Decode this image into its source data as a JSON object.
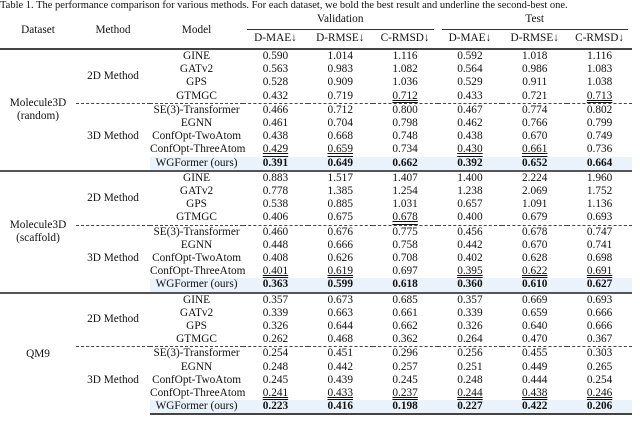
{
  "caption": "Table 1. The performance comparison for various methods. For each dataset, we bold the best result and underline the second-best one.",
  "header": {
    "dataset": "Dataset",
    "method": "Method",
    "model": "Model",
    "validation": "Validation",
    "test": "Test",
    "metrics": [
      "D-MAE↓",
      "D-RMSE↓",
      "C-RMSD↓",
      "D-MAE↓",
      "D-RMSE↓",
      "C-RMSD↓"
    ]
  },
  "datasets": [
    {
      "name_lines": [
        "Molecule3D",
        "(random)"
      ],
      "groups": [
        {
          "method": "2D Method",
          "rows": [
            {
              "model": "GINE",
              "values": [
                "0.590",
                "1.014",
                "1.116",
                "0.592",
                "1.018",
                "1.116"
              ],
              "underline": []
            },
            {
              "model": "GATv2",
              "values": [
                "0.563",
                "0.983",
                "1.082",
                "0.564",
                "0.986",
                "1.083"
              ],
              "underline": []
            },
            {
              "model": "GPS",
              "values": [
                "0.528",
                "0.909",
                "1.036",
                "0.529",
                "0.911",
                "1.038"
              ],
              "underline": []
            },
            {
              "model": "GTMGC",
              "values": [
                "0.432",
                "0.719",
                "0.712",
                "0.433",
                "0.721",
                "0.713"
              ],
              "underline": [
                2,
                5
              ]
            }
          ]
        },
        {
          "method": "3D Method",
          "rows": [
            {
              "model": "SE(3)-Transformer",
              "values": [
                "0.466",
                "0.712",
                "0.800",
                "0.467",
                "0.774",
                "0.802"
              ],
              "underline": []
            },
            {
              "model": "EGNN",
              "values": [
                "0.461",
                "0.704",
                "0.798",
                "0.462",
                "0.766",
                "0.799"
              ],
              "underline": []
            },
            {
              "model": "ConfOpt-TwoAtom",
              "values": [
                "0.438",
                "0.668",
                "0.748",
                "0.438",
                "0.670",
                "0.749"
              ],
              "underline": []
            },
            {
              "model": "ConfOpt-ThreeAtom",
              "values": [
                "0.429",
                "0.659",
                "0.734",
                "0.430",
                "0.661",
                "0.736"
              ],
              "underline": [
                0,
                1,
                3,
                4
              ]
            },
            {
              "model": "WGFormer (ours)",
              "values": [
                "0.391",
                "0.649",
                "0.662",
                "0.392",
                "0.652",
                "0.664"
              ],
              "underline": [],
              "best": true
            }
          ]
        }
      ]
    },
    {
      "name_lines": [
        "Molecule3D",
        "(scaffold)"
      ],
      "groups": [
        {
          "method": "2D Method",
          "rows": [
            {
              "model": "GINE",
              "values": [
                "0.883",
                "1.517",
                "1.407",
                "1.400",
                "2.224",
                "1.960"
              ],
              "underline": []
            },
            {
              "model": "GATv2",
              "values": [
                "0.778",
                "1.385",
                "1.254",
                "1.238",
                "2.069",
                "1.752"
              ],
              "underline": []
            },
            {
              "model": "GPS",
              "values": [
                "0.538",
                "0.885",
                "1.031",
                "0.657",
                "1.091",
                "1.136"
              ],
              "underline": []
            },
            {
              "model": "GTMGC",
              "values": [
                "0.406",
                "0.675",
                "0.678",
                "0.400",
                "0.679",
                "0.693"
              ],
              "underline": [
                2
              ]
            }
          ]
        },
        {
          "method": "3D Method",
          "rows": [
            {
              "model": "SE(3)-Transformer",
              "values": [
                "0.460",
                "0.676",
                "0.775",
                "0.456",
                "0.678",
                "0.747"
              ],
              "underline": []
            },
            {
              "model": "EGNN",
              "values": [
                "0.448",
                "0.666",
                "0.758",
                "0.442",
                "0.670",
                "0.741"
              ],
              "underline": []
            },
            {
              "model": "ConfOpt-TwoAtom",
              "values": [
                "0.408",
                "0.626",
                "0.708",
                "0.402",
                "0.628",
                "0.698"
              ],
              "underline": []
            },
            {
              "model": "ConfOpt-ThreeAtom",
              "values": [
                "0.401",
                "0.619",
                "0.697",
                "0.395",
                "0.622",
                "0.691"
              ],
              "underline": [
                0,
                1,
                3,
                4,
                5
              ]
            },
            {
              "model": "WGFormer (ours)",
              "values": [
                "0.363",
                "0.599",
                "0.618",
                "0.360",
                "0.610",
                "0.627"
              ],
              "underline": [],
              "best": true
            }
          ]
        }
      ]
    },
    {
      "name_lines": [
        "QM9"
      ],
      "groups": [
        {
          "method": "2D Method",
          "rows": [
            {
              "model": "GINE",
              "values": [
                "0.357",
                "0.673",
                "0.685",
                "0.357",
                "0.669",
                "0.693"
              ],
              "underline": []
            },
            {
              "model": "GATv2",
              "values": [
                "0.339",
                "0.663",
                "0.661",
                "0.339",
                "0.659",
                "0.666"
              ],
              "underline": []
            },
            {
              "model": "GPS",
              "values": [
                "0.326",
                "0.644",
                "0.662",
                "0.326",
                "0.640",
                "0.666"
              ],
              "underline": []
            },
            {
              "model": "GTMGC",
              "values": [
                "0.262",
                "0.468",
                "0.362",
                "0.264",
                "0.470",
                "0.367"
              ],
              "underline": []
            }
          ]
        },
        {
          "method": "3D Method",
          "rows": [
            {
              "model": "SE(3)-Transformer",
              "values": [
                "0.254",
                "0.451",
                "0.296",
                "0.256",
                "0.455",
                "0.303"
              ],
              "underline": []
            },
            {
              "model": "EGNN",
              "values": [
                "0.248",
                "0.442",
                "0.257",
                "0.251",
                "0.449",
                "0.265"
              ],
              "underline": []
            },
            {
              "model": "ConfOpt-TwoAtom",
              "values": [
                "0.245",
                "0.439",
                "0.245",
                "0.248",
                "0.444",
                "0.254"
              ],
              "underline": []
            },
            {
              "model": "ConfOpt-ThreeAtom",
              "values": [
                "0.241",
                "0.433",
                "0.237",
                "0.244",
                "0.438",
                "0.246"
              ],
              "underline": [
                0,
                1,
                2,
                3,
                4,
                5
              ]
            },
            {
              "model": "WGFormer (ours)",
              "values": [
                "0.223",
                "0.416",
                "0.198",
                "0.227",
                "0.422",
                "0.206"
              ],
              "underline": [],
              "best": true
            }
          ]
        }
      ]
    }
  ]
}
